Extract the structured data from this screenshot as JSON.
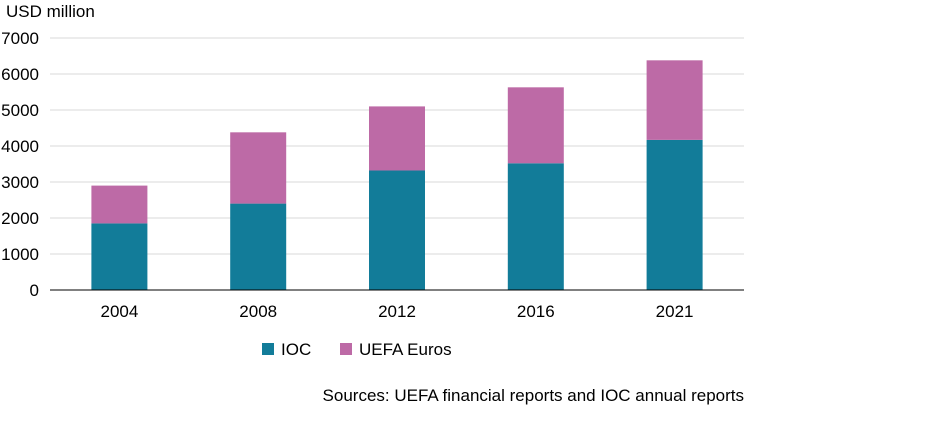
{
  "chart_data": {
    "type": "bar",
    "stacked": true,
    "ylabel": "USD million",
    "ylim": [
      0,
      7000
    ],
    "yticks": [
      0,
      1000,
      2000,
      3000,
      4000,
      5000,
      6000,
      7000
    ],
    "categories": [
      "2004",
      "2008",
      "2012",
      "2016",
      "2021"
    ],
    "series": [
      {
        "name": "IOC",
        "color": "#127c99",
        "values": [
          1850,
          2400,
          3320,
          3520,
          4170
        ]
      },
      {
        "name": "UEFA Euros",
        "color": "#bd6aa6",
        "values": [
          1050,
          1980,
          1780,
          2110,
          2210
        ]
      }
    ],
    "grid": true,
    "legend_position": "bottom",
    "source": "Sources: UEFA financial reports and IOC annual reports"
  }
}
